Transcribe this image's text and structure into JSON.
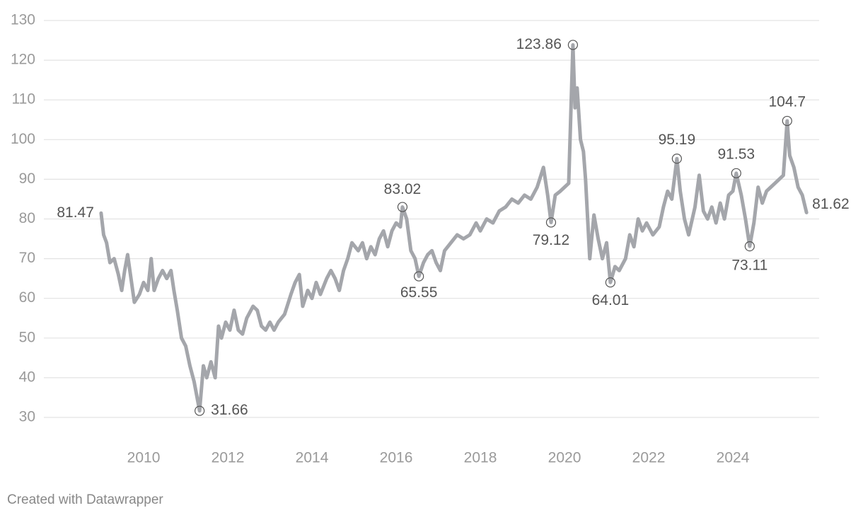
{
  "chart_data": {
    "type": "line",
    "credit": "Created with Datawrapper",
    "xlim": [
      2007.63,
      2026.05
    ],
    "ylim": [
      30,
      130
    ],
    "xticks": [
      2010,
      2012,
      2014,
      2016,
      2018,
      2020,
      2022,
      2024
    ],
    "yticks": [
      30,
      40,
      50,
      60,
      70,
      80,
      90,
      100,
      110,
      120,
      130
    ],
    "grid": true,
    "series": [
      {
        "color": "#a4a6ab",
        "x": [
          2008.99,
          2009.05,
          2009.12,
          2009.2,
          2009.3,
          2009.4,
          2009.48,
          2009.55,
          2009.62,
          2009.7,
          2009.78,
          2009.9,
          2010.0,
          2010.1,
          2010.18,
          2010.25,
          2010.35,
          2010.45,
          2010.55,
          2010.65,
          2010.72,
          2010.8,
          2010.9,
          2011.0,
          2011.1,
          2011.2,
          2011.33,
          2011.42,
          2011.5,
          2011.6,
          2011.7,
          2011.78,
          2011.85,
          2011.95,
          2012.05,
          2012.15,
          2012.25,
          2012.35,
          2012.45,
          2012.6,
          2012.7,
          2012.8,
          2012.9,
          2013.0,
          2013.1,
          2013.2,
          2013.35,
          2013.5,
          2013.6,
          2013.7,
          2013.78,
          2013.9,
          2014.0,
          2014.1,
          2014.2,
          2014.35,
          2014.45,
          2014.55,
          2014.65,
          2014.75,
          2014.85,
          2014.95,
          2015.1,
          2015.2,
          2015.3,
          2015.4,
          2015.5,
          2015.6,
          2015.7,
          2015.8,
          2015.9,
          2016.0,
          2016.1,
          2016.15,
          2016.25,
          2016.35,
          2016.45,
          2016.54,
          2016.65,
          2016.75,
          2016.85,
          2016.95,
          2017.05,
          2017.15,
          2017.3,
          2017.45,
          2017.6,
          2017.75,
          2017.9,
          2018.0,
          2018.15,
          2018.3,
          2018.45,
          2018.6,
          2018.75,
          2018.9,
          2019.05,
          2019.2,
          2019.35,
          2019.5,
          2019.6,
          2019.68,
          2019.78,
          2019.9,
          2020.0,
          2020.1,
          2020.2,
          2020.25,
          2020.3,
          2020.38,
          2020.45,
          2020.5,
          2020.6,
          2020.7,
          2020.8,
          2020.9,
          2021.0,
          2021.09,
          2021.2,
          2021.3,
          2021.45,
          2021.55,
          2021.65,
          2021.75,
          2021.85,
          2021.95,
          2022.1,
          2022.25,
          2022.35,
          2022.45,
          2022.55,
          2022.67,
          2022.75,
          2022.85,
          2022.95,
          2023.1,
          2023.2,
          2023.3,
          2023.4,
          2023.5,
          2023.6,
          2023.7,
          2023.8,
          2023.9,
          2024.0,
          2024.08,
          2024.2,
          2024.3,
          2024.4,
          2024.5,
          2024.6,
          2024.7,
          2024.8,
          2024.9,
          2025.0,
          2025.1,
          2025.2,
          2025.29,
          2025.35,
          2025.45,
          2025.55,
          2025.65,
          2025.75
        ],
        "values": [
          81.47,
          76,
          74,
          69,
          70,
          66,
          62,
          67,
          71,
          65,
          59,
          61,
          64,
          62,
          70,
          62,
          65,
          67,
          65,
          67,
          62,
          57,
          50,
          48,
          43,
          39,
          31.66,
          43,
          40,
          44,
          40,
          53,
          50,
          54,
          52,
          57,
          52,
          51,
          55,
          58,
          57,
          53,
          52,
          54,
          52,
          54,
          56,
          61,
          64,
          66,
          58,
          62,
          60,
          64,
          61,
          65,
          67,
          65,
          62,
          67,
          70,
          74,
          72,
          74,
          70,
          73,
          71,
          75,
          77,
          73,
          77,
          79,
          78,
          83.02,
          80,
          72,
          70,
          65.55,
          69,
          71,
          72,
          69,
          67,
          72,
          74,
          76,
          75,
          76,
          79,
          77,
          80,
          79,
          82,
          83,
          85,
          84,
          86,
          85,
          88,
          93,
          86,
          79.12,
          86,
          87,
          88,
          89,
          123.86,
          108,
          113,
          100,
          97,
          90,
          70,
          81,
          75,
          70,
          74,
          64.01,
          68,
          67,
          70,
          76,
          73,
          80,
          77,
          79,
          76,
          78,
          83,
          87,
          85,
          95.19,
          87,
          80,
          76,
          83,
          91,
          82,
          80,
          83,
          79,
          84,
          80,
          86,
          87,
          91.53,
          86,
          80,
          73.11,
          79,
          88,
          84,
          87,
          88,
          89,
          90,
          91,
          104.7,
          96,
          93,
          88,
          86,
          81.62
        ]
      }
    ],
    "annotations": [
      {
        "x": 2008.99,
        "value": 81.47
      },
      {
        "x": 2011.33,
        "value": 31.66
      },
      {
        "x": 2016.15,
        "value": 83.02
      },
      {
        "x": 2016.54,
        "value": 65.55
      },
      {
        "x": 2019.68,
        "value": 79.12
      },
      {
        "x": 2020.2,
        "value": 123.86
      },
      {
        "x": 2021.09,
        "value": 64.01
      },
      {
        "x": 2022.67,
        "value": 95.19
      },
      {
        "x": 2024.08,
        "value": 91.53
      },
      {
        "x": 2024.4,
        "value": 73.11
      },
      {
        "x": 2025.29,
        "value": 104.7
      },
      {
        "x": 2025.75,
        "value": 81.62
      }
    ]
  }
}
